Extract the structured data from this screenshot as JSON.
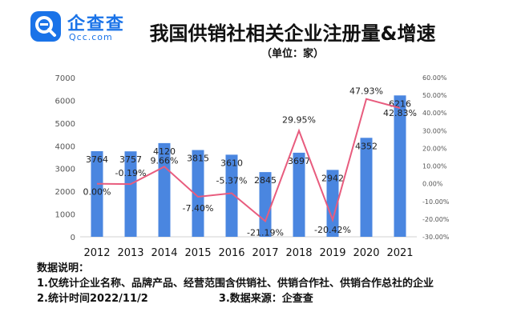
{
  "brand": {
    "name_cn": "企查查",
    "name_en": "Qcc.com",
    "accent": "#1a73e8"
  },
  "header": {
    "title": "我国供销社相关企业注册量&增速",
    "unit": "（单位：家）"
  },
  "chart_data": {
    "type": "bar",
    "categories": [
      "2012",
      "2013",
      "2014",
      "2015",
      "2016",
      "2017",
      "2018",
      "2019",
      "2020",
      "2021"
    ],
    "series": [
      {
        "type": "bar",
        "values": [
          3764,
          3757,
          4120,
          3815,
          3610,
          2845,
          3697,
          2942,
          4352,
          6216
        ],
        "labels": [
          "3764",
          "3757",
          "4120",
          "3815",
          "3610",
          "2845",
          "3697",
          "2942",
          "4352",
          "6216"
        ],
        "color": "#4a86e0"
      },
      {
        "type": "line",
        "values": [
          0.0,
          -0.19,
          9.66,
          -7.4,
          -5.37,
          -21.19,
          29.95,
          -20.42,
          47.93,
          42.83
        ],
        "labels": [
          "0.00%",
          "-0.19%",
          "9.66%",
          "-7.40%",
          "-5.37%",
          "-21.19%",
          "29.95%",
          "-20.42%",
          "47.93%",
          "42.83%"
        ],
        "color": "#e85c7e"
      }
    ],
    "y_left": {
      "ylim": [
        0,
        7000
      ],
      "ticks": [
        "0",
        "1000",
        "2000",
        "3000",
        "4000",
        "5000",
        "6000",
        "7000"
      ]
    },
    "y_right": {
      "ylim": [
        -30,
        60
      ],
      "ticks": [
        "-30.00%",
        "-20.00%",
        "-10.00%",
        "0.00%",
        "10.00%",
        "20.00%",
        "30.00%",
        "40.00%",
        "50.00%",
        "60.00%"
      ]
    },
    "grid": false,
    "legend": "none"
  },
  "notes": {
    "heading": "数据说明：",
    "line1": "1.仅统计企业名称、品牌产品、经营范围含供销社、供销合作社、供销合作总社的企业",
    "line2a": "2.统计时间2022/11/2",
    "line2b": "3.数据来源：企查查"
  }
}
